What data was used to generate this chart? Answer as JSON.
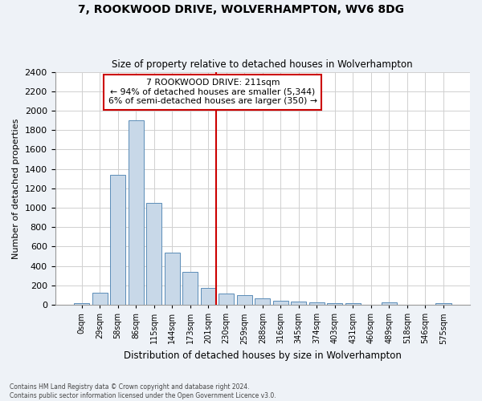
{
  "title": "7, ROOKWOOD DRIVE, WOLVERHAMPTON, WV6 8DG",
  "subtitle": "Size of property relative to detached houses in Wolverhampton",
  "xlabel": "Distribution of detached houses by size in Wolverhampton",
  "ylabel": "Number of detached properties",
  "bar_labels": [
    "0sqm",
    "29sqm",
    "58sqm",
    "86sqm",
    "115sqm",
    "144sqm",
    "173sqm",
    "201sqm",
    "230sqm",
    "259sqm",
    "288sqm",
    "316sqm",
    "345sqm",
    "374sqm",
    "403sqm",
    "431sqm",
    "460sqm",
    "489sqm",
    "518sqm",
    "546sqm",
    "575sqm"
  ],
  "bar_values": [
    15,
    125,
    1340,
    1900,
    1050,
    540,
    340,
    175,
    115,
    100,
    65,
    45,
    35,
    30,
    20,
    15,
    0,
    25,
    0,
    0,
    15
  ],
  "bar_color": "#c8d8e8",
  "bar_edgecolor": "#5b8db8",
  "vline_color": "#cc0000",
  "annotation_text": "7 ROOKWOOD DRIVE: 211sqm\n← 94% of detached houses are smaller (5,344)\n6% of semi-detached houses are larger (350) →",
  "annotation_box_edgecolor": "#cc0000",
  "ylim": [
    0,
    2400
  ],
  "yticks": [
    0,
    200,
    400,
    600,
    800,
    1000,
    1200,
    1400,
    1600,
    1800,
    2000,
    2200,
    2400
  ],
  "footer_line1": "Contains HM Land Registry data © Crown copyright and database right 2024.",
  "footer_line2": "Contains public sector information licensed under the Open Government Licence v3.0.",
  "background_color": "#eef2f7",
  "plot_background_color": "#ffffff",
  "grid_color": "#d0d0d0"
}
